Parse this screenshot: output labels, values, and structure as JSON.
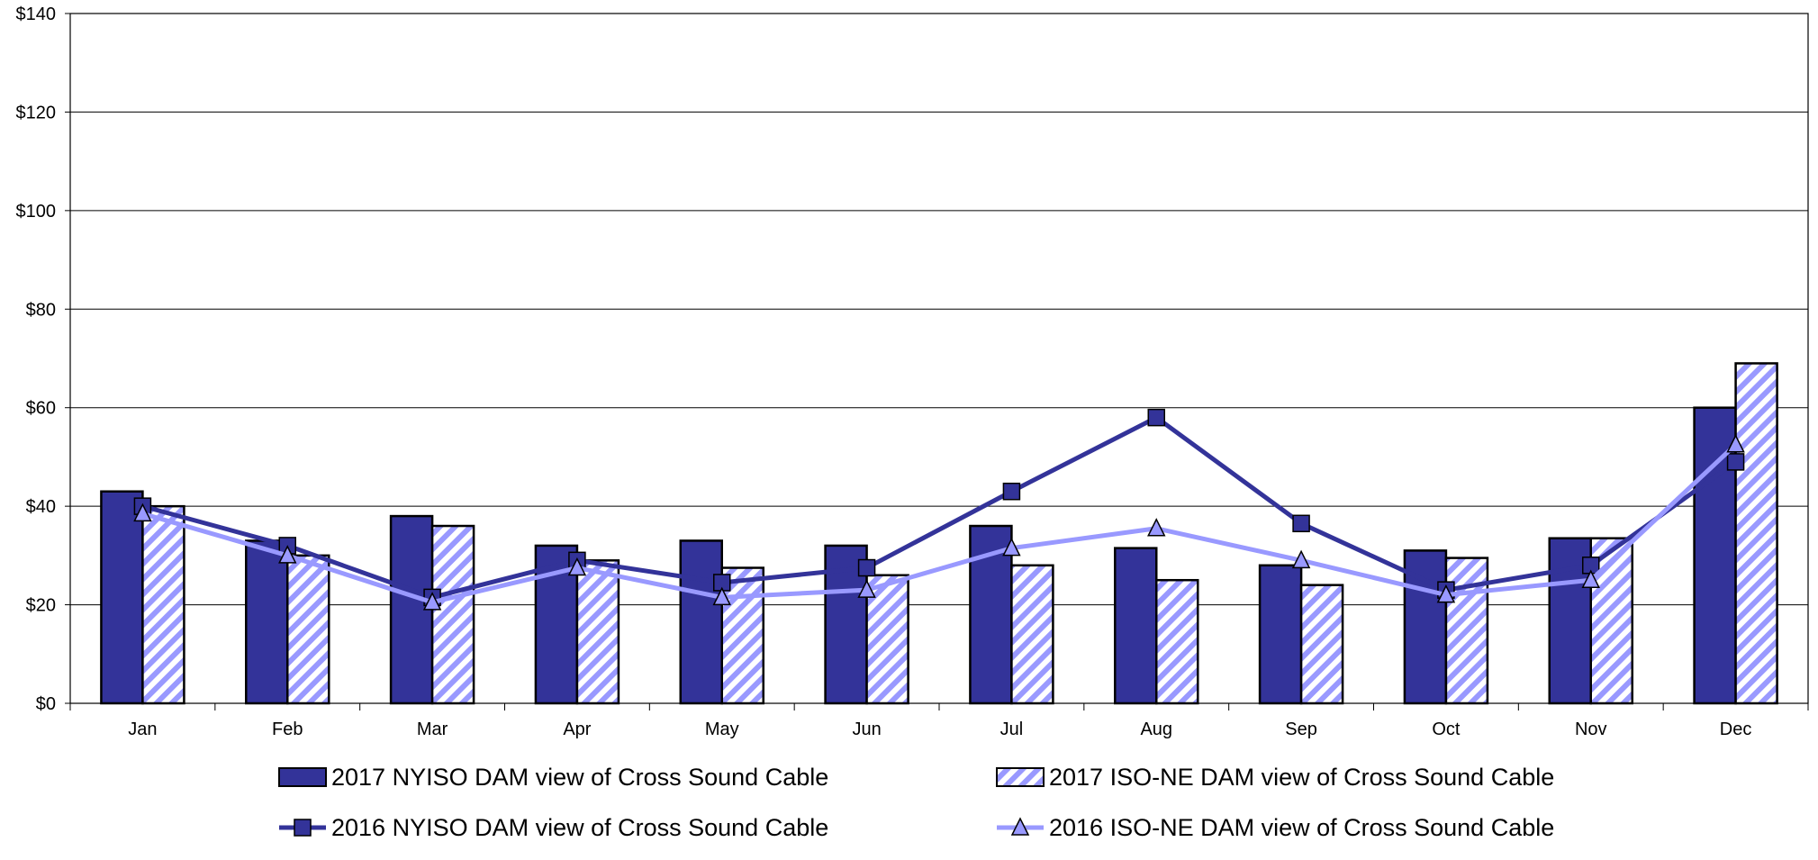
{
  "chart_data": {
    "type": "bar",
    "categories": [
      "Jan",
      "Feb",
      "Mar",
      "Apr",
      "May",
      "Jun",
      "Jul",
      "Aug",
      "Sep",
      "Oct",
      "Nov",
      "Dec"
    ],
    "ylim": [
      0,
      140
    ],
    "yticks": [
      0,
      20,
      40,
      60,
      80,
      100,
      120,
      140
    ],
    "ytick_labels": [
      "$0",
      "$20",
      "$40",
      "$60",
      "$80",
      "$100",
      "$120",
      "$140"
    ],
    "grid": true,
    "legend_position": "bottom",
    "series": [
      {
        "name": "2017 NYISO DAM view of Cross Sound Cable",
        "kind": "bar",
        "color": "#333399",
        "values": [
          43,
          33,
          38,
          32,
          33,
          32,
          36,
          31.5,
          28,
          31,
          33.5,
          60
        ]
      },
      {
        "name": "2017 ISO-NE DAM view of Cross Sound Cable",
        "kind": "bar",
        "pattern": "diagonal-hatch",
        "color": "#9999ff",
        "values": [
          40,
          30,
          36,
          29,
          27.5,
          26,
          28,
          25,
          24,
          29.5,
          33.5,
          69
        ]
      },
      {
        "name": "2016 NYISO DAM view of Cross Sound Cable",
        "kind": "line",
        "marker": "square",
        "color": "#333399",
        "values": [
          40,
          32,
          21.5,
          29,
          24.5,
          27.5,
          43,
          58,
          36.5,
          23,
          28,
          49
        ]
      },
      {
        "name": "2016 ISO-NE DAM view of Cross Sound Cable",
        "kind": "line",
        "marker": "triangle",
        "color": "#9999ff",
        "values": [
          38.5,
          30,
          20.5,
          27.5,
          21.5,
          23,
          31.5,
          35.5,
          29,
          22,
          25,
          52.5
        ]
      }
    ]
  }
}
